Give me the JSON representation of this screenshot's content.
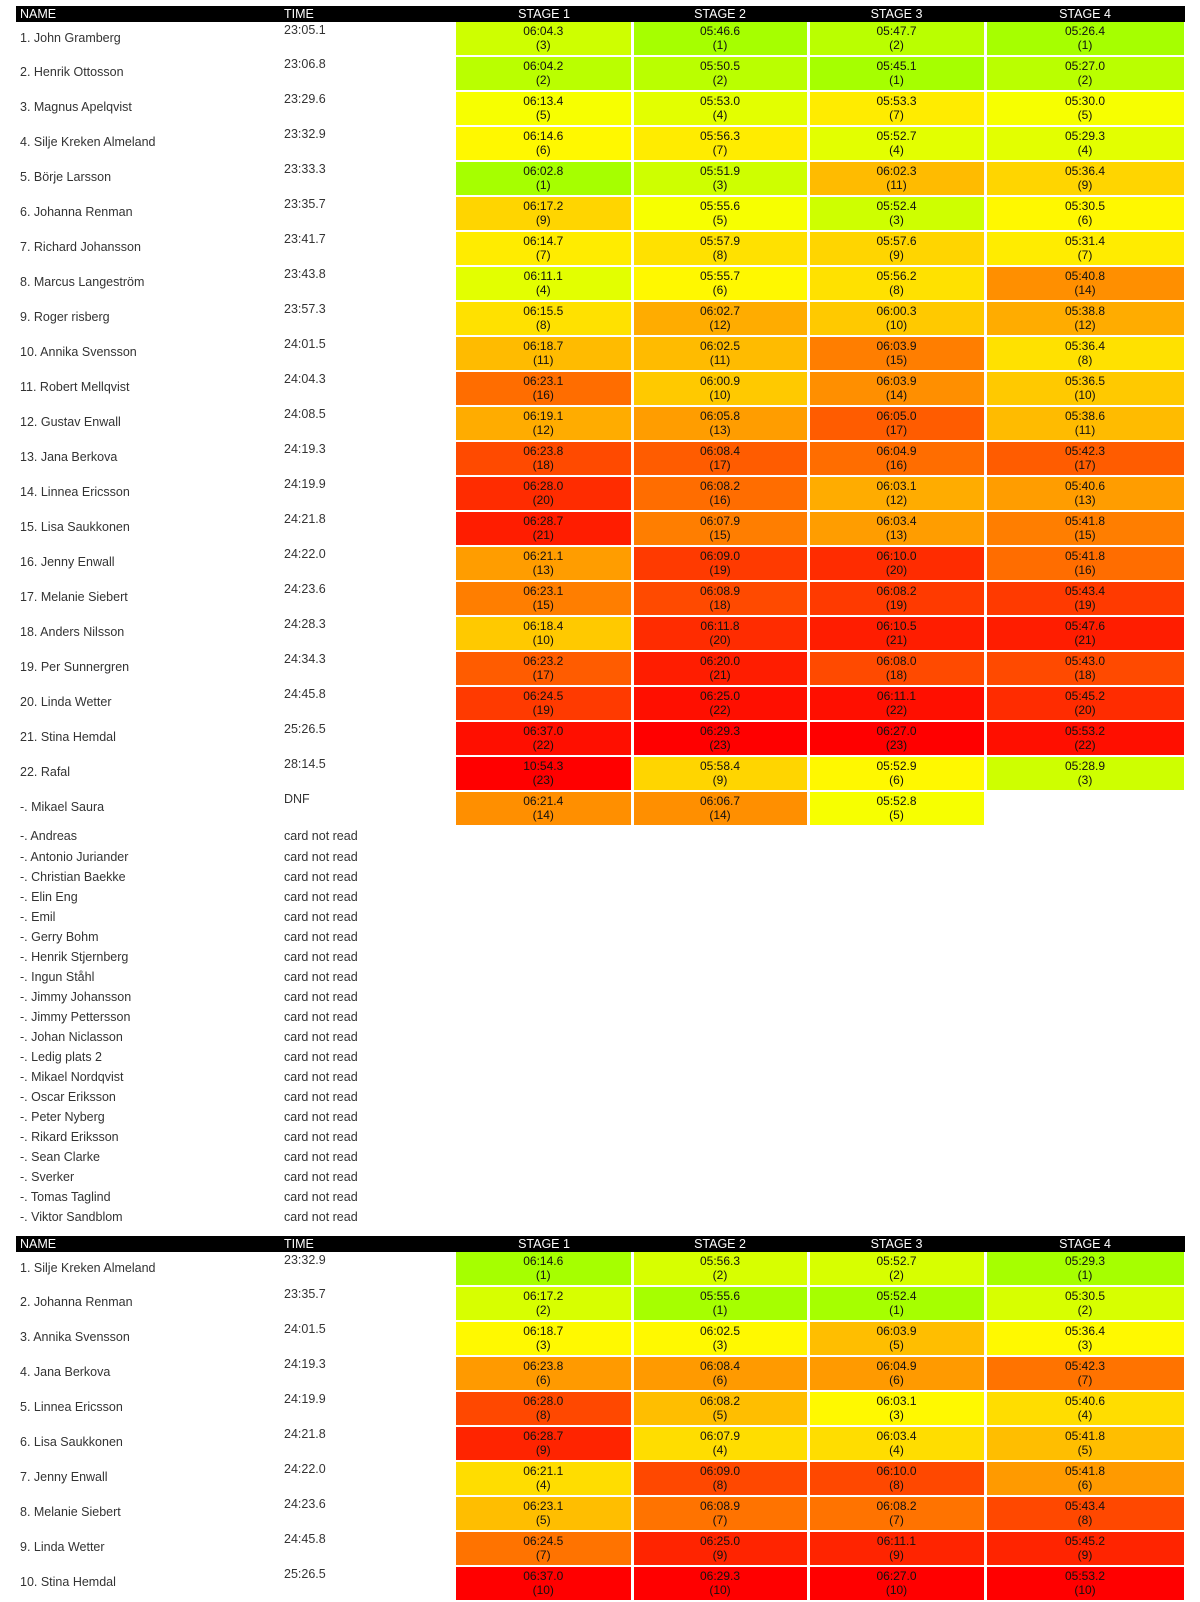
{
  "colors": {
    "header_bg": "#000000",
    "best": "#a6ff00",
    "worst": "#ff0000"
  },
  "tables": [
    {
      "headers": [
        "NAME",
        "TIME",
        "STAGE 1",
        "STAGE 2",
        "STAGE 3",
        "STAGE 4"
      ],
      "rows": [
        {
          "name": "1. John Gramberg",
          "time": "23:05.1",
          "stages": [
            {
              "t": "06:04.3",
              "r": "(3)"
            },
            {
              "t": "05:46.6",
              "r": "(1)"
            },
            {
              "t": "05:47.7",
              "r": "(2)"
            },
            {
              "t": "05:26.4",
              "r": "(1)"
            }
          ]
        },
        {
          "name": "2. Henrik Ottosson",
          "time": "23:06.8",
          "stages": [
            {
              "t": "06:04.2",
              "r": "(2)"
            },
            {
              "t": "05:50.5",
              "r": "(2)"
            },
            {
              "t": "05:45.1",
              "r": "(1)"
            },
            {
              "t": "05:27.0",
              "r": "(2)"
            }
          ]
        },
        {
          "name": "3. Magnus Apelqvist",
          "time": "23:29.6",
          "stages": [
            {
              "t": "06:13.4",
              "r": "(5)"
            },
            {
              "t": "05:53.0",
              "r": "(4)"
            },
            {
              "t": "05:53.3",
              "r": "(7)"
            },
            {
              "t": "05:30.0",
              "r": "(5)"
            }
          ]
        },
        {
          "name": "4. Silje Kreken Almeland",
          "time": "23:32.9",
          "stages": [
            {
              "t": "06:14.6",
              "r": "(6)"
            },
            {
              "t": "05:56.3",
              "r": "(7)"
            },
            {
              "t": "05:52.7",
              "r": "(4)"
            },
            {
              "t": "05:29.3",
              "r": "(4)"
            }
          ]
        },
        {
          "name": "5. Börje Larsson",
          "time": "23:33.3",
          "stages": [
            {
              "t": "06:02.8",
              "r": "(1)"
            },
            {
              "t": "05:51.9",
              "r": "(3)"
            },
            {
              "t": "06:02.3",
              "r": "(11)"
            },
            {
              "t": "05:36.4",
              "r": "(9)"
            }
          ]
        },
        {
          "name": "6. Johanna Renman",
          "time": "23:35.7",
          "stages": [
            {
              "t": "06:17.2",
              "r": "(9)"
            },
            {
              "t": "05:55.6",
              "r": "(5)"
            },
            {
              "t": "05:52.4",
              "r": "(3)"
            },
            {
              "t": "05:30.5",
              "r": "(6)"
            }
          ]
        },
        {
          "name": "7. Richard Johansson",
          "time": "23:41.7",
          "stages": [
            {
              "t": "06:14.7",
              "r": "(7)"
            },
            {
              "t": "05:57.9",
              "r": "(8)"
            },
            {
              "t": "05:57.6",
              "r": "(9)"
            },
            {
              "t": "05:31.4",
              "r": "(7)"
            }
          ]
        },
        {
          "name": "8. Marcus Langeström",
          "time": "23:43.8",
          "stages": [
            {
              "t": "06:11.1",
              "r": "(4)"
            },
            {
              "t": "05:55.7",
              "r": "(6)"
            },
            {
              "t": "05:56.2",
              "r": "(8)"
            },
            {
              "t": "05:40.8",
              "r": "(14)"
            }
          ]
        },
        {
          "name": "9. Roger risberg",
          "time": "23:57.3",
          "stages": [
            {
              "t": "06:15.5",
              "r": "(8)"
            },
            {
              "t": "06:02.7",
              "r": "(12)"
            },
            {
              "t": "06:00.3",
              "r": "(10)"
            },
            {
              "t": "05:38.8",
              "r": "(12)"
            }
          ]
        },
        {
          "name": "10. Annika Svensson",
          "time": "24:01.5",
          "stages": [
            {
              "t": "06:18.7",
              "r": "(11)"
            },
            {
              "t": "06:02.5",
              "r": "(11)"
            },
            {
              "t": "06:03.9",
              "r": "(15)"
            },
            {
              "t": "05:36.4",
              "r": "(8)"
            }
          ]
        },
        {
          "name": "11. Robert Mellqvist",
          "time": "24:04.3",
          "stages": [
            {
              "t": "06:23.1",
              "r": "(16)"
            },
            {
              "t": "06:00.9",
              "r": "(10)"
            },
            {
              "t": "06:03.9",
              "r": "(14)"
            },
            {
              "t": "05:36.5",
              "r": "(10)"
            }
          ]
        },
        {
          "name": "12. Gustav Enwall",
          "time": "24:08.5",
          "stages": [
            {
              "t": "06:19.1",
              "r": "(12)"
            },
            {
              "t": "06:05.8",
              "r": "(13)"
            },
            {
              "t": "06:05.0",
              "r": "(17)"
            },
            {
              "t": "05:38.6",
              "r": "(11)"
            }
          ]
        },
        {
          "name": "13. Jana Berkova",
          "time": "24:19.3",
          "stages": [
            {
              "t": "06:23.8",
              "r": "(18)"
            },
            {
              "t": "06:08.4",
              "r": "(17)"
            },
            {
              "t": "06:04.9",
              "r": "(16)"
            },
            {
              "t": "05:42.3",
              "r": "(17)"
            }
          ]
        },
        {
          "name": "14. Linnea Ericsson",
          "time": "24:19.9",
          "stages": [
            {
              "t": "06:28.0",
              "r": "(20)"
            },
            {
              "t": "06:08.2",
              "r": "(16)"
            },
            {
              "t": "06:03.1",
              "r": "(12)"
            },
            {
              "t": "05:40.6",
              "r": "(13)"
            }
          ]
        },
        {
          "name": "15. Lisa Saukkonen",
          "time": "24:21.8",
          "stages": [
            {
              "t": "06:28.7",
              "r": "(21)"
            },
            {
              "t": "06:07.9",
              "r": "(15)"
            },
            {
              "t": "06:03.4",
              "r": "(13)"
            },
            {
              "t": "05:41.8",
              "r": "(15)"
            }
          ]
        },
        {
          "name": "16. Jenny Enwall",
          "time": "24:22.0",
          "stages": [
            {
              "t": "06:21.1",
              "r": "(13)"
            },
            {
              "t": "06:09.0",
              "r": "(19)"
            },
            {
              "t": "06:10.0",
              "r": "(20)"
            },
            {
              "t": "05:41.8",
              "r": "(16)"
            }
          ]
        },
        {
          "name": "17. Melanie Siebert",
          "time": "24:23.6",
          "stages": [
            {
              "t": "06:23.1",
              "r": "(15)"
            },
            {
              "t": "06:08.9",
              "r": "(18)"
            },
            {
              "t": "06:08.2",
              "r": "(19)"
            },
            {
              "t": "05:43.4",
              "r": "(19)"
            }
          ]
        },
        {
          "name": "18. Anders Nilsson",
          "time": "24:28.3",
          "stages": [
            {
              "t": "06:18.4",
              "r": "(10)"
            },
            {
              "t": "06:11.8",
              "r": "(20)"
            },
            {
              "t": "06:10.5",
              "r": "(21)"
            },
            {
              "t": "05:47.6",
              "r": "(21)"
            }
          ]
        },
        {
          "name": "19. Per Sunnergren",
          "time": "24:34.3",
          "stages": [
            {
              "t": "06:23.2",
              "r": "(17)"
            },
            {
              "t": "06:20.0",
              "r": "(21)"
            },
            {
              "t": "06:08.0",
              "r": "(18)"
            },
            {
              "t": "05:43.0",
              "r": "(18)"
            }
          ]
        },
        {
          "name": "20. Linda Wetter",
          "time": "24:45.8",
          "stages": [
            {
              "t": "06:24.5",
              "r": "(19)"
            },
            {
              "t": "06:25.0",
              "r": "(22)"
            },
            {
              "t": "06:11.1",
              "r": "(22)"
            },
            {
              "t": "05:45.2",
              "r": "(20)"
            }
          ]
        },
        {
          "name": "21. Stina Hemdal",
          "time": "25:26.5",
          "stages": [
            {
              "t": "06:37.0",
              "r": "(22)"
            },
            {
              "t": "06:29.3",
              "r": "(23)"
            },
            {
              "t": "06:27.0",
              "r": "(23)"
            },
            {
              "t": "05:53.2",
              "r": "(22)"
            }
          ]
        },
        {
          "name": "22. Rafal",
          "time": "28:14.5",
          "stages": [
            {
              "t": "10:54.3",
              "r": "(23)"
            },
            {
              "t": "05:58.4",
              "r": "(9)"
            },
            {
              "t": "05:52.9",
              "r": "(6)"
            },
            {
              "t": "05:28.9",
              "r": "(3)"
            }
          ]
        },
        {
          "name": "-. Mikael Saura",
          "time": "DNF",
          "stages": [
            {
              "t": "06:21.4",
              "r": "(14)"
            },
            {
              "t": "06:06.7",
              "r": "(14)"
            },
            {
              "t": "05:52.8",
              "r": "(5)"
            }
          ]
        }
      ],
      "card_not_read_label": "card not read",
      "not_read": [
        "-. Andreas",
        "-. Antonio Juriander",
        "-. Christian Baekke",
        "-. Elin Eng",
        "-. Emil",
        "-. Gerry Bohm",
        "-. Henrik Stjernberg",
        "-. Ingun Ståhl",
        "-. Jimmy Johansson",
        "-. Jimmy Pettersson",
        "-. Johan Niclasson",
        "-. Ledig plats 2",
        "-. Mikael Nordqvist",
        "-. Oscar Eriksson",
        "-. Peter Nyberg",
        "-. Rikard Eriksson",
        "-. Sean Clarke",
        "-. Sverker",
        "-. Tomas Taglind",
        "-. Viktor Sandblom"
      ]
    },
    {
      "headers": [
        "NAME",
        "TIME",
        "STAGE 1",
        "STAGE 2",
        "STAGE 3",
        "STAGE 4"
      ],
      "rows": [
        {
          "name": "1. Silje Kreken Almeland",
          "time": "23:32.9",
          "stages": [
            {
              "t": "06:14.6",
              "r": "(1)"
            },
            {
              "t": "05:56.3",
              "r": "(2)"
            },
            {
              "t": "05:52.7",
              "r": "(2)"
            },
            {
              "t": "05:29.3",
              "r": "(1)"
            }
          ]
        },
        {
          "name": "2. Johanna Renman",
          "time": "23:35.7",
          "stages": [
            {
              "t": "06:17.2",
              "r": "(2)"
            },
            {
              "t": "05:55.6",
              "r": "(1)"
            },
            {
              "t": "05:52.4",
              "r": "(1)"
            },
            {
              "t": "05:30.5",
              "r": "(2)"
            }
          ]
        },
        {
          "name": "3. Annika Svensson",
          "time": "24:01.5",
          "stages": [
            {
              "t": "06:18.7",
              "r": "(3)"
            },
            {
              "t": "06:02.5",
              "r": "(3)"
            },
            {
              "t": "06:03.9",
              "r": "(5)"
            },
            {
              "t": "05:36.4",
              "r": "(3)"
            }
          ]
        },
        {
          "name": "4. Jana Berkova",
          "time": "24:19.3",
          "stages": [
            {
              "t": "06:23.8",
              "r": "(6)"
            },
            {
              "t": "06:08.4",
              "r": "(6)"
            },
            {
              "t": "06:04.9",
              "r": "(6)"
            },
            {
              "t": "05:42.3",
              "r": "(7)"
            }
          ]
        },
        {
          "name": "5. Linnea Ericsson",
          "time": "24:19.9",
          "stages": [
            {
              "t": "06:28.0",
              "r": "(8)"
            },
            {
              "t": "06:08.2",
              "r": "(5)"
            },
            {
              "t": "06:03.1",
              "r": "(3)"
            },
            {
              "t": "05:40.6",
              "r": "(4)"
            }
          ]
        },
        {
          "name": "6. Lisa Saukkonen",
          "time": "24:21.8",
          "stages": [
            {
              "t": "06:28.7",
              "r": "(9)"
            },
            {
              "t": "06:07.9",
              "r": "(4)"
            },
            {
              "t": "06:03.4",
              "r": "(4)"
            },
            {
              "t": "05:41.8",
              "r": "(5)"
            }
          ]
        },
        {
          "name": "7. Jenny Enwall",
          "time": "24:22.0",
          "stages": [
            {
              "t": "06:21.1",
              "r": "(4)"
            },
            {
              "t": "06:09.0",
              "r": "(8)"
            },
            {
              "t": "06:10.0",
              "r": "(8)"
            },
            {
              "t": "05:41.8",
              "r": "(6)"
            }
          ]
        },
        {
          "name": "8. Melanie Siebert",
          "time": "24:23.6",
          "stages": [
            {
              "t": "06:23.1",
              "r": "(5)"
            },
            {
              "t": "06:08.9",
              "r": "(7)"
            },
            {
              "t": "06:08.2",
              "r": "(7)"
            },
            {
              "t": "05:43.4",
              "r": "(8)"
            }
          ]
        },
        {
          "name": "9. Linda Wetter",
          "time": "24:45.8",
          "stages": [
            {
              "t": "06:24.5",
              "r": "(7)"
            },
            {
              "t": "06:25.0",
              "r": "(9)"
            },
            {
              "t": "06:11.1",
              "r": "(9)"
            },
            {
              "t": "05:45.2",
              "r": "(9)"
            }
          ]
        },
        {
          "name": "10. Stina Hemdal",
          "time": "25:26.5",
          "stages": [
            {
              "t": "06:37.0",
              "r": "(10)"
            },
            {
              "t": "06:29.3",
              "r": "(10)"
            },
            {
              "t": "06:27.0",
              "r": "(10)"
            },
            {
              "t": "05:53.2",
              "r": "(10)"
            }
          ]
        }
      ]
    }
  ]
}
